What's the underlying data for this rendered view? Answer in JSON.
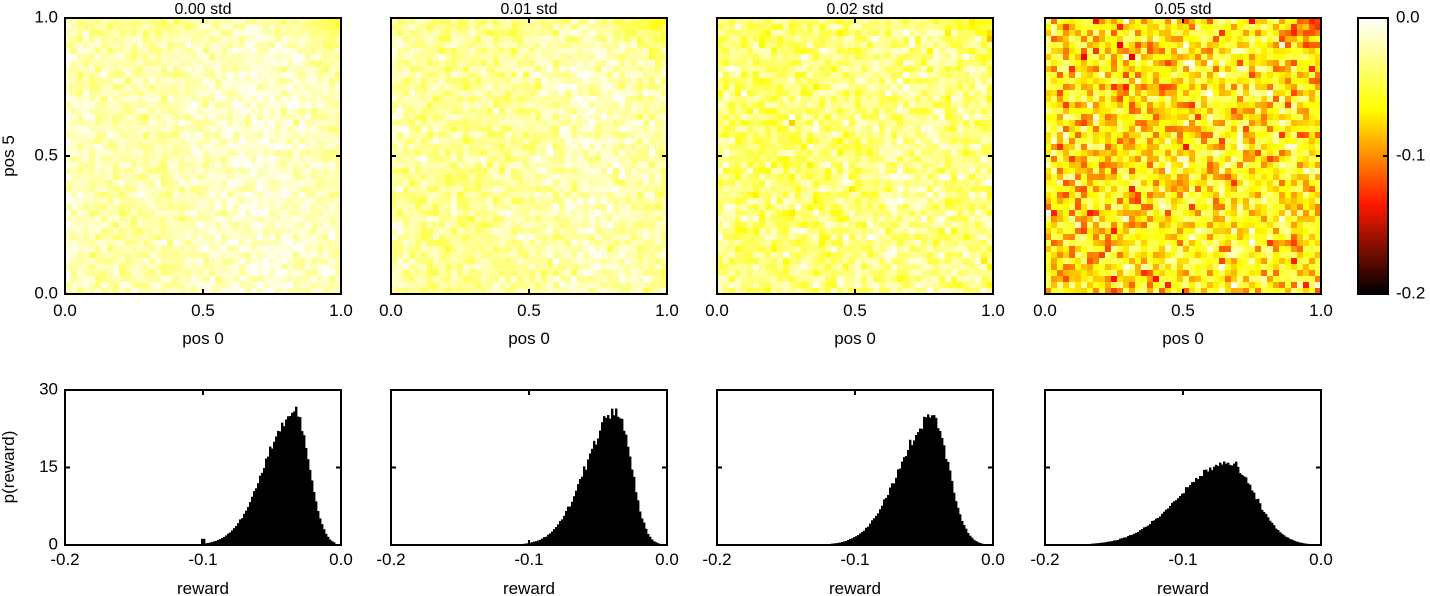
{
  "chart_data": [
    {
      "type": "heatmap",
      "title": "0.00 std",
      "xlabel": "pos 0",
      "ylabel": "pos 5",
      "xlim": [
        0,
        1
      ],
      "ylim": [
        0,
        1
      ],
      "xticks": [
        "0.0",
        "0.5",
        "1.0"
      ],
      "yticks": [
        "0.0",
        "0.5",
        "1.0"
      ],
      "value_mean": -0.022,
      "value_noise": 0.008,
      "grid": false
    },
    {
      "type": "heatmap",
      "title": "0.01 std",
      "xlabel": "pos 0",
      "xlim": [
        0,
        1
      ],
      "ylim": [
        0,
        1
      ],
      "xticks": [
        "0.0",
        "0.5",
        "1.0"
      ],
      "value_mean": -0.028,
      "value_noise": 0.01,
      "grid": false
    },
    {
      "type": "heatmap",
      "title": "0.02 std",
      "xlabel": "pos 0",
      "xlim": [
        0,
        1
      ],
      "ylim": [
        0,
        1
      ],
      "xticks": [
        "0.0",
        "0.5",
        "1.0"
      ],
      "value_mean": -0.037,
      "value_noise": 0.014,
      "grid": false
    },
    {
      "type": "heatmap",
      "title": "0.05 std",
      "xlabel": "pos 0",
      "xlim": [
        0,
        1
      ],
      "ylim": [
        0,
        1
      ],
      "xticks": [
        "0.0",
        "0.5",
        "1.0"
      ],
      "value_mean": -0.07,
      "value_noise": 0.025,
      "grid": false
    },
    {
      "type": "colorbar",
      "colormap": "hot",
      "range": [
        -0.2,
        0.0
      ],
      "ticks": [
        "0.0",
        "-0.1",
        "-0.2"
      ]
    },
    {
      "type": "histogram",
      "xlabel": "reward",
      "ylabel": "p(reward)",
      "xlim": [
        -0.2,
        0.0
      ],
      "ylim": [
        0,
        30
      ],
      "xticks": [
        "-0.2",
        "-0.1",
        "0.0"
      ],
      "yticks": [
        "0",
        "15",
        "30"
      ],
      "peak_x": -0.033,
      "peak_y": 25.5,
      "spread_left": 0.022,
      "spread_right": 0.01,
      "min_x": -0.12,
      "max_x": -0.004,
      "spike_x": -0.1,
      "spike_y": 1.2,
      "fill": "#000000"
    },
    {
      "type": "histogram",
      "xlabel": "reward",
      "xlim": [
        -0.2,
        0.0
      ],
      "ylim": [
        0,
        30
      ],
      "xticks": [
        "-0.2",
        "-0.1",
        "0.0"
      ],
      "peak_x": -0.036,
      "peak_y": 26.5,
      "spread_left": 0.022,
      "spread_right": 0.01,
      "min_x": -0.13,
      "max_x": -0.002,
      "fill": "#000000"
    },
    {
      "type": "histogram",
      "xlabel": "reward",
      "xlim": [
        -0.2,
        0.0
      ],
      "ylim": [
        0,
        30
      ],
      "xticks": [
        "-0.2",
        "-0.1",
        "0.0"
      ],
      "peak_x": -0.044,
      "peak_y": 24.5,
      "spread_left": 0.024,
      "spread_right": 0.012,
      "min_x": -0.15,
      "max_x": -0.002,
      "fill": "#000000"
    },
    {
      "type": "histogram",
      "xlabel": "reward",
      "xlim": [
        -0.2,
        0.0
      ],
      "ylim": [
        0,
        30
      ],
      "xticks": [
        "-0.2",
        "-0.1",
        "0.0"
      ],
      "peak_x": -0.068,
      "peak_y": 15.8,
      "spread_left": 0.034,
      "spread_right": 0.02,
      "min_x": -0.2,
      "max_x": -0.002,
      "fill": "#000000"
    }
  ]
}
